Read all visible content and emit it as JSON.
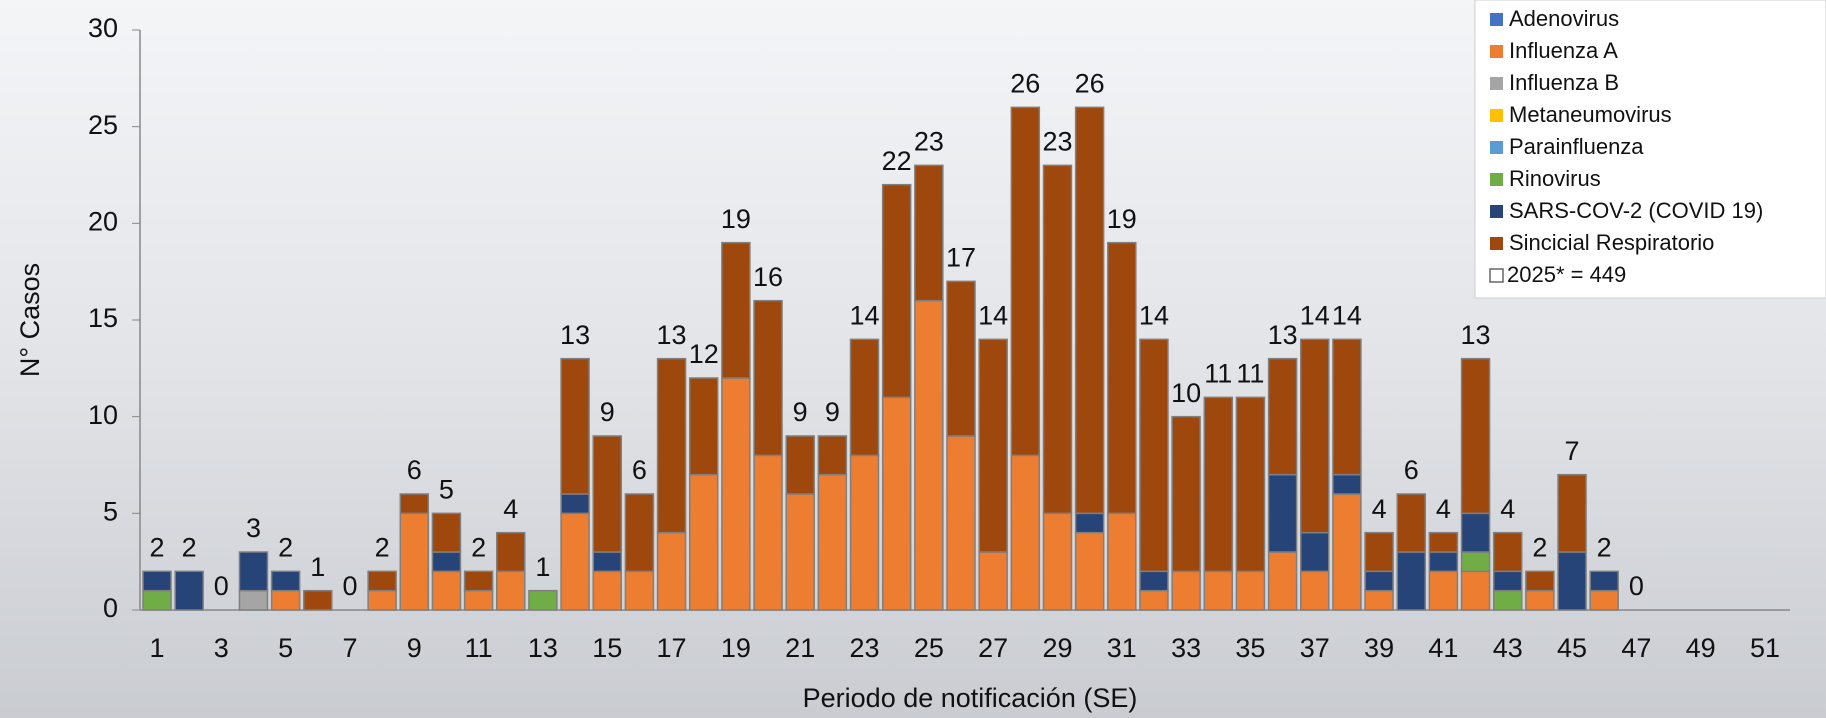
{
  "chart_data": {
    "type": "stacked_bar",
    "xlabel": "Periodo de notificación (SE)",
    "ylabel": "N° Casos",
    "categories": [
      1,
      null,
      3,
      null,
      5,
      null,
      7,
      null,
      9,
      null,
      11,
      null,
      13,
      null,
      15,
      null,
      17,
      null,
      19,
      null,
      21,
      null,
      23,
      null,
      25,
      null,
      27,
      null,
      29,
      null,
      31,
      null,
      33,
      null,
      35,
      null,
      37,
      null,
      39,
      null,
      41,
      null,
      43,
      null,
      45,
      null,
      47,
      null,
      49,
      null,
      51,
      null
    ],
    "series": [
      {
        "name": "Adenovirus",
        "color": "#4472c4",
        "values": [
          0,
          0,
          0,
          0,
          0,
          0,
          0,
          0,
          0,
          0,
          0,
          0,
          0,
          0,
          0,
          0,
          0,
          0,
          0,
          0,
          0,
          0,
          0,
          0,
          0,
          0,
          0,
          0,
          0,
          0,
          0,
          0,
          0,
          0,
          0,
          0,
          0,
          0,
          0,
          0,
          0,
          0,
          0,
          0,
          0,
          0,
          0,
          null,
          null,
          null,
          null,
          null
        ]
      },
      {
        "name": "Influenza A",
        "color": "#ed7d31",
        "values": [
          0,
          0,
          0,
          0,
          1,
          0,
          0,
          1,
          5,
          2,
          1,
          2,
          0,
          5,
          2,
          2,
          4,
          7,
          12,
          8,
          6,
          7,
          8,
          11,
          16,
          9,
          3,
          8,
          5,
          4,
          5,
          1,
          2,
          2,
          2,
          3,
          2,
          6,
          1,
          0,
          2,
          2,
          0,
          1,
          0,
          1,
          0,
          null,
          null,
          null,
          null,
          null
        ]
      },
      {
        "name": "Influenza B",
        "color": "#a5a5a5",
        "values": [
          0,
          0,
          0,
          1,
          0,
          0,
          0,
          0,
          0,
          0,
          0,
          0,
          0,
          0,
          0,
          0,
          0,
          0,
          0,
          0,
          0,
          0,
          0,
          0,
          0,
          0,
          0,
          0,
          0,
          0,
          0,
          0,
          0,
          0,
          0,
          0,
          0,
          0,
          0,
          0,
          0,
          0,
          0,
          0,
          0,
          0,
          0,
          null,
          null,
          null,
          null,
          null
        ]
      },
      {
        "name": "Metaneumovirus",
        "color": "#ffc000",
        "values": [
          0,
          0,
          0,
          0,
          0,
          0,
          0,
          0,
          0,
          0,
          0,
          0,
          0,
          0,
          0,
          0,
          0,
          0,
          0,
          0,
          0,
          0,
          0,
          0,
          0,
          0,
          0,
          0,
          0,
          0,
          0,
          0,
          0,
          0,
          0,
          0,
          0,
          0,
          0,
          0,
          0,
          0,
          0,
          0,
          0,
          0,
          0,
          null,
          null,
          null,
          null,
          null
        ]
      },
      {
        "name": "Parainfluenza",
        "color": "#5b9bd5",
        "values": [
          0,
          0,
          0,
          0,
          0,
          0,
          0,
          0,
          0,
          0,
          0,
          0,
          0,
          0,
          0,
          0,
          0,
          0,
          0,
          0,
          0,
          0,
          0,
          0,
          0,
          0,
          0,
          0,
          0,
          0,
          0,
          0,
          0,
          0,
          0,
          0,
          0,
          0,
          0,
          0,
          0,
          0,
          0,
          0,
          0,
          0,
          0,
          null,
          null,
          null,
          null,
          null
        ]
      },
      {
        "name": "Rinovirus",
        "color": "#70ad47",
        "values": [
          1,
          0,
          0,
          0,
          0,
          0,
          0,
          0,
          0,
          0,
          0,
          0,
          1,
          0,
          0,
          0,
          0,
          0,
          0,
          0,
          0,
          0,
          0,
          0,
          0,
          0,
          0,
          0,
          0,
          0,
          0,
          0,
          0,
          0,
          0,
          0,
          0,
          0,
          0,
          0,
          0,
          1,
          1,
          0,
          0,
          0,
          0,
          null,
          null,
          null,
          null,
          null
        ]
      },
      {
        "name": "SARS-COV-2 (COVID 19)",
        "color": "#264478",
        "values": [
          1,
          2,
          0,
          2,
          1,
          0,
          0,
          0,
          0,
          1,
          0,
          0,
          0,
          1,
          1,
          0,
          0,
          0,
          0,
          0,
          0,
          0,
          0,
          0,
          0,
          0,
          0,
          0,
          0,
          1,
          0,
          1,
          0,
          0,
          0,
          4,
          2,
          1,
          1,
          3,
          1,
          2,
          1,
          0,
          3,
          1,
          0,
          null,
          null,
          null,
          null,
          null
        ]
      },
      {
        "name": "Sincicial Respiratorio",
        "color": "#9e480e",
        "values": [
          0,
          0,
          0,
          0,
          0,
          1,
          0,
          1,
          1,
          2,
          1,
          2,
          0,
          7,
          6,
          4,
          9,
          5,
          7,
          8,
          3,
          2,
          6,
          11,
          7,
          8,
          11,
          18,
          18,
          21,
          14,
          12,
          8,
          9,
          9,
          6,
          10,
          7,
          2,
          3,
          1,
          8,
          2,
          1,
          4,
          0,
          0,
          null,
          null,
          null,
          null,
          null
        ]
      }
    ],
    "totals": [
      2,
      2,
      0,
      3,
      2,
      1,
      0,
      2,
      6,
      5,
      2,
      4,
      1,
      13,
      9,
      6,
      13,
      12,
      19,
      16,
      9,
      9,
      14,
      22,
      23,
      17,
      14,
      26,
      23,
      26,
      19,
      14,
      10,
      11,
      11,
      13,
      14,
      14,
      4,
      6,
      4,
      13,
      4,
      2,
      7,
      2,
      0
    ],
    "legend_total": "2025*  =  449",
    "ylim": [
      0,
      30
    ],
    "yticks": [
      0,
      5,
      10,
      15,
      20,
      25,
      30
    ]
  }
}
